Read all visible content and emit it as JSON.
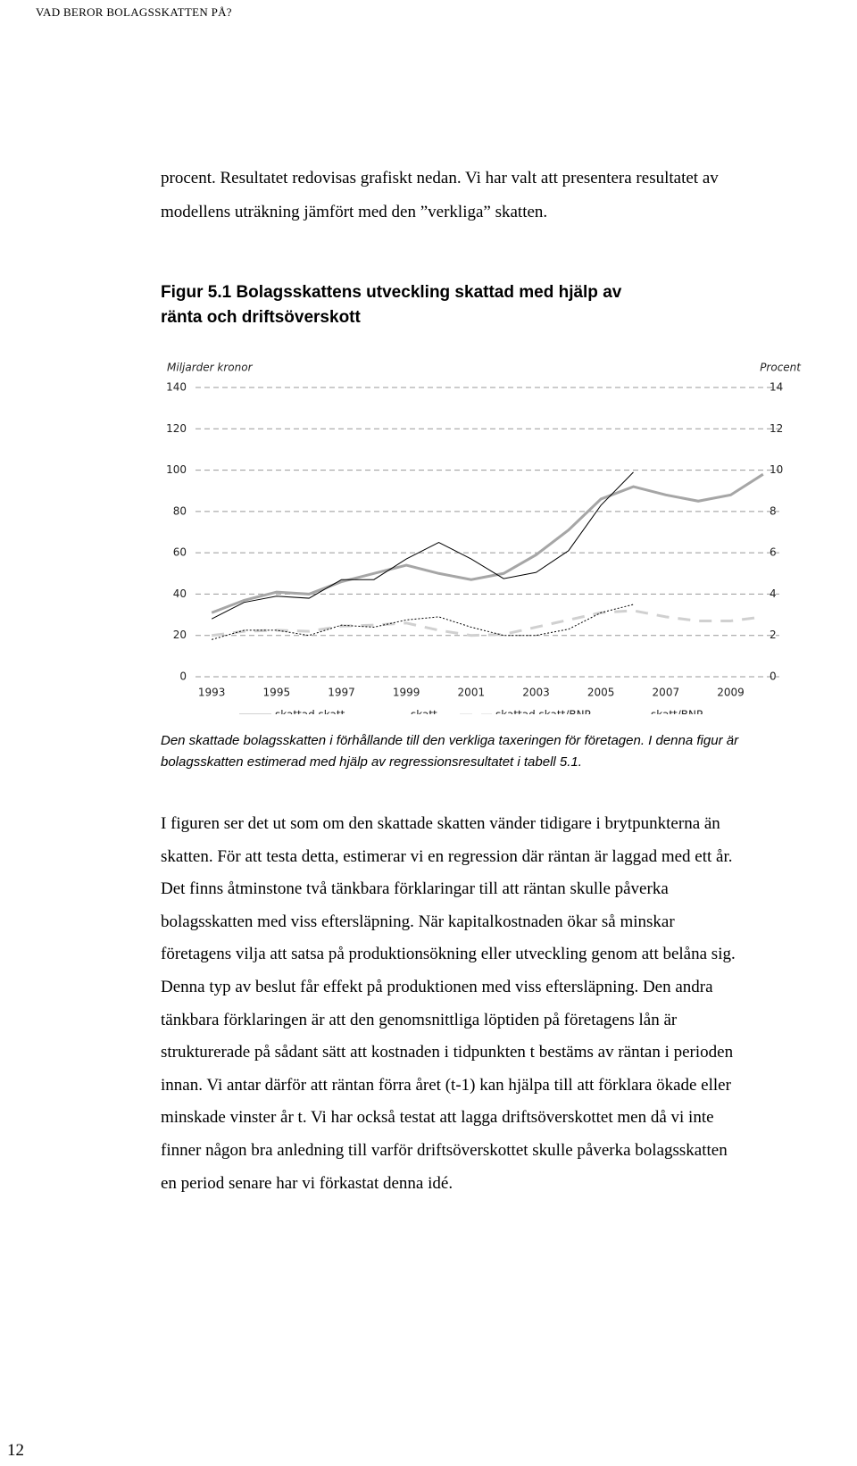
{
  "header": "VAD BEROR BOLAGSSKATTEN PÅ?",
  "intro": [
    "procent. Resultatet redovisas grafiskt nedan. Vi har valt att presentera resultatet av",
    "modellens uträkning jämfört med den ”verkliga” skatten."
  ],
  "figure_title": [
    "Figur 5.1 Bolagsskattens utveckling skattad med hjälp av",
    "ränta och driftsöverskott"
  ],
  "chart_data": {
    "type": "line",
    "ylabel": "Miljarder kronor",
    "y2label": "Procent",
    "categories": [
      "1993",
      null,
      "1995",
      null,
      "1997",
      null,
      "1999",
      null,
      "2001",
      null,
      "2003",
      null,
      "2005",
      null,
      "2007",
      null,
      "2009",
      null
    ],
    "ylim": [
      0,
      140
    ],
    "yticks": [
      0,
      20,
      40,
      60,
      80,
      100,
      120,
      140
    ],
    "y2lim": [
      0,
      14
    ],
    "y2ticks": [
      0,
      2,
      4,
      6,
      8,
      10,
      12,
      14
    ],
    "grid": true,
    "series": [
      {
        "name": "skattad skatt",
        "color": "#a6a6a6",
        "style": "solid",
        "line_width": 3,
        "values": [
          31,
          37,
          41,
          40,
          46,
          50,
          54,
          50,
          47,
          50,
          59,
          71,
          86,
          92,
          88,
          85,
          88,
          98
        ]
      },
      {
        "name": "skatt",
        "color": "#000000",
        "style": "solid",
        "line_width": 1,
        "values": [
          28,
          36,
          39,
          38,
          47,
          47,
          57,
          65,
          57,
          47.5,
          50.5,
          61,
          83,
          99,
          null,
          null,
          null,
          null
        ]
      },
      {
        "name": "skattad skatt/BNP",
        "color": "#d0d0d0",
        "style": "dashed",
        "line_width": 3,
        "axis": "y2",
        "values": [
          2.0,
          2.2,
          2.25,
          2.2,
          2.45,
          2.5,
          2.6,
          2.25,
          2.0,
          2.05,
          2.4,
          2.75,
          3.1,
          3.2,
          2.9,
          2.7,
          2.7,
          2.9
        ]
      },
      {
        "name": "skatt/BNP",
        "color": "#000000",
        "style": "dotted",
        "line_width": 1,
        "axis": "y2",
        "values": [
          1.8,
          2.25,
          2.25,
          2.0,
          2.5,
          2.4,
          2.75,
          2.9,
          2.4,
          2.0,
          2.0,
          2.3,
          3.1,
          3.5,
          null,
          null,
          null,
          null
        ]
      }
    ]
  },
  "caption": [
    "Den skattade bolagsskatten i förhållande till den verkliga taxeringen för företagen. I denna figur är",
    "bolagsskatten estimerad med hjälp av regressionsresultatet i tabell 5.1."
  ],
  "body": [
    "I figuren ser det ut som om den skattade skatten vänder tidigare i brytpunkterna än",
    "skatten. För att testa detta, estimerar vi en regression där räntan är laggad med ett år.",
    "Det finns åtminstone två tänkbara förklaringar till att räntan skulle påverka",
    "bolagsskatten med viss eftersläpning. När kapitalkostnaden ökar så minskar",
    "företagens vilja att satsa på produktionsökning eller utveckling genom att belåna sig.",
    "Denna typ av beslut får effekt på produktionen med viss eftersläpning. Den andra",
    "tänkbara förklaringen är att den genomsnittliga löptiden på företagens lån är",
    "strukturerade på sådant sätt att kostnaden i tidpunkten t bestäms av räntan i perioden",
    "innan. Vi antar därför att räntan förra året (t-1) kan hjälpa till att förklara ökade eller",
    "minskade vinster år t. Vi har också testat att lagga driftsöverskottet men då vi inte",
    "finner någon bra anledning till varför driftsöverskottet skulle påverka bolagsskatten",
    "en period senare har vi förkastat denna idé."
  ],
  "page_number": "12"
}
